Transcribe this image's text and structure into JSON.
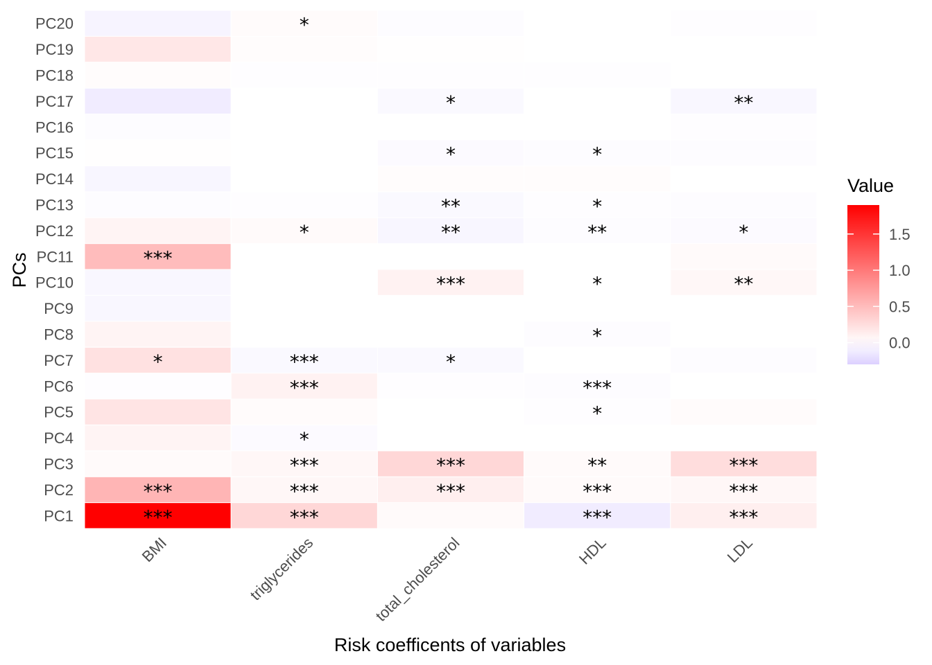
{
  "chart_data": {
    "type": "heatmap",
    "xlabel": "Risk coefficents of variables",
    "ylabel": "PCs",
    "x_categories": [
      "BMI",
      "triglycerides",
      "total_cholesterol",
      "HDL",
      "LDL"
    ],
    "y_categories": [
      "PC1",
      "PC2",
      "PC3",
      "PC4",
      "PC5",
      "PC6",
      "PC7",
      "PC8",
      "PC9",
      "PC10",
      "PC11",
      "PC12",
      "PC13",
      "PC14",
      "PC15",
      "PC16",
      "PC17",
      "PC18",
      "PC19",
      "PC20"
    ],
    "values": [
      [
        1.9,
        0.3,
        0.04,
        -0.12,
        0.12
      ],
      [
        0.55,
        0.06,
        0.12,
        0.04,
        0.06
      ],
      [
        0.04,
        0.06,
        0.3,
        0.04,
        0.25
      ],
      [
        0.08,
        -0.03,
        0.0,
        0.0,
        0.0
      ],
      [
        0.2,
        0.03,
        0.0,
        -0.01,
        0.03
      ],
      [
        -0.01,
        0.1,
        -0.01,
        -0.02,
        0.0
      ],
      [
        0.22,
        -0.04,
        -0.04,
        0.0,
        -0.02
      ],
      [
        0.08,
        0.0,
        0.0,
        -0.02,
        0.0
      ],
      [
        -0.05,
        0.0,
        0.0,
        0.0,
        0.0
      ],
      [
        -0.05,
        0.0,
        0.1,
        0.0,
        0.06
      ],
      [
        0.5,
        0.0,
        0.0,
        0.0,
        0.04
      ],
      [
        0.08,
        0.04,
        -0.06,
        -0.02,
        -0.03
      ],
      [
        -0.02,
        -0.01,
        -0.04,
        -0.01,
        -0.02
      ],
      [
        -0.06,
        0.0,
        0.02,
        0.02,
        0.0
      ],
      [
        0.01,
        0.0,
        -0.03,
        -0.02,
        -0.02
      ],
      [
        -0.02,
        0.0,
        0.0,
        0.0,
        -0.01
      ],
      [
        -0.12,
        0.0,
        -0.04,
        0.0,
        -0.05
      ],
      [
        0.02,
        -0.01,
        -0.01,
        -0.01,
        0.0
      ],
      [
        0.18,
        0.02,
        0.01,
        0.0,
        0.0
      ],
      [
        -0.07,
        0.03,
        -0.02,
        0.0,
        -0.01
      ]
    ],
    "significance": [
      [
        "***",
        "***",
        "",
        "***",
        "***"
      ],
      [
        "***",
        "***",
        "***",
        "***",
        "***"
      ],
      [
        "",
        "***",
        "***",
        "**",
        "***"
      ],
      [
        "",
        "*",
        "",
        "",
        ""
      ],
      [
        "",
        "",
        "",
        "*",
        ""
      ],
      [
        "",
        "***",
        "",
        "***",
        ""
      ],
      [
        "*",
        "***",
        "*",
        "",
        ""
      ],
      [
        "",
        "",
        "",
        "*",
        ""
      ],
      [
        "",
        "",
        "",
        "",
        ""
      ],
      [
        "",
        "",
        "***",
        "*",
        "**"
      ],
      [
        "***",
        "",
        "",
        "",
        ""
      ],
      [
        "",
        "*",
        "**",
        "**",
        "*"
      ],
      [
        "",
        "",
        "**",
        "*",
        ""
      ],
      [
        "",
        "",
        "",
        "",
        ""
      ],
      [
        "",
        "",
        "*",
        "*",
        ""
      ],
      [
        "",
        "",
        "",
        "",
        ""
      ],
      [
        "",
        "",
        "*",
        "",
        "**"
      ],
      [
        "",
        "",
        "",
        "",
        ""
      ],
      [
        "",
        "",
        "",
        "",
        ""
      ],
      [
        "",
        "*",
        "",
        "",
        ""
      ]
    ],
    "colorscale": {
      "low": "#dcd0ff",
      "mid": "#ffffff",
      "high": "#ff0000",
      "min": -0.3,
      "mid_value": 0.0,
      "max": 1.9
    },
    "legend": {
      "title": "Value",
      "ticks": [
        "0.0",
        "0.5",
        "1.0",
        "1.5"
      ],
      "tick_values": [
        0.0,
        0.5,
        1.0,
        1.5
      ],
      "placement": "right"
    },
    "grid": false
  }
}
